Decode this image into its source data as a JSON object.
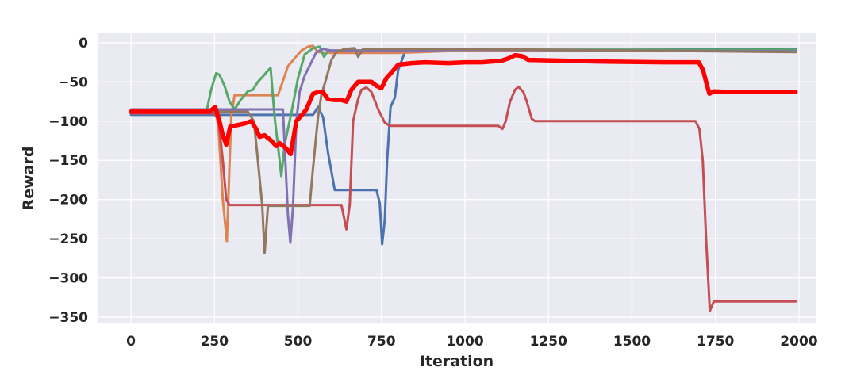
{
  "chart_data": {
    "type": "line",
    "title": "",
    "xlabel": "Iteration",
    "ylabel": "Reward",
    "xlim": [
      -100,
      2050
    ],
    "ylim": [
      -358,
      12
    ],
    "x_ticks": [
      0,
      250,
      500,
      750,
      1000,
      1250,
      1500,
      1750,
      2000
    ],
    "x_tick_labels": [
      "0",
      "250",
      "500",
      "750",
      "1000",
      "1250",
      "1500",
      "1750",
      "2000"
    ],
    "y_ticks": [
      0,
      -50,
      -100,
      -150,
      -200,
      -250,
      -300,
      -350
    ],
    "y_tick_labels": [
      "0",
      "−50",
      "−100",
      "−150",
      "−200",
      "−250",
      "−300",
      "−350"
    ],
    "grid": true,
    "background": "#eaeaf2",
    "grid_color": "#ffffff",
    "legend": "none",
    "series": [
      {
        "color": "#4c72b0",
        "points": [
          [
            0,
            -92
          ],
          [
            520,
            -92
          ],
          [
            545,
            -92
          ],
          [
            560,
            -82
          ],
          [
            575,
            -95
          ],
          [
            590,
            -140
          ],
          [
            610,
            -188
          ],
          [
            700,
            -188
          ],
          [
            735,
            -188
          ],
          [
            745,
            -205
          ],
          [
            752,
            -257
          ],
          [
            760,
            -225
          ],
          [
            767,
            -150
          ],
          [
            777,
            -82
          ],
          [
            790,
            -70
          ],
          [
            800,
            -35
          ],
          [
            820,
            -12
          ],
          [
            850,
            -10
          ],
          [
            1000,
            -9
          ],
          [
            1500,
            -9
          ],
          [
            1990,
            -8
          ]
        ]
      },
      {
        "color": "#dd8452",
        "points": [
          [
            0,
            -90
          ],
          [
            230,
            -90
          ],
          [
            255,
            -88
          ],
          [
            262,
            -110
          ],
          [
            275,
            -200
          ],
          [
            287,
            -253
          ],
          [
            300,
            -95
          ],
          [
            310,
            -67
          ],
          [
            350,
            -67
          ],
          [
            440,
            -67
          ],
          [
            450,
            -55
          ],
          [
            470,
            -30
          ],
          [
            490,
            -20
          ],
          [
            510,
            -10
          ],
          [
            530,
            -5
          ],
          [
            545,
            -4
          ],
          [
            560,
            -12
          ],
          [
            600,
            -13
          ],
          [
            800,
            -13
          ],
          [
            1000,
            -10
          ],
          [
            1990,
            -10
          ]
        ]
      },
      {
        "color": "#55a868",
        "points": [
          [
            0,
            -90
          ],
          [
            225,
            -90
          ],
          [
            240,
            -60
          ],
          [
            255,
            -39
          ],
          [
            265,
            -41
          ],
          [
            280,
            -55
          ],
          [
            295,
            -75
          ],
          [
            310,
            -85
          ],
          [
            330,
            -72
          ],
          [
            350,
            -62
          ],
          [
            365,
            -60
          ],
          [
            380,
            -50
          ],
          [
            395,
            -43
          ],
          [
            405,
            -38
          ],
          [
            418,
            -32
          ],
          [
            430,
            -95
          ],
          [
            445,
            -150
          ],
          [
            450,
            -170
          ],
          [
            460,
            -130
          ],
          [
            480,
            -90
          ],
          [
            500,
            -45
          ],
          [
            520,
            -15
          ],
          [
            545,
            -7
          ],
          [
            565,
            -5
          ],
          [
            578,
            -18
          ],
          [
            590,
            -10
          ],
          [
            620,
            -10
          ],
          [
            1000,
            -9
          ],
          [
            1990,
            -9
          ]
        ]
      },
      {
        "color": "#c44e52",
        "points": [
          [
            0,
            -90
          ],
          [
            250,
            -90
          ],
          [
            262,
            -100
          ],
          [
            275,
            -150
          ],
          [
            285,
            -200
          ],
          [
            295,
            -207
          ],
          [
            320,
            -207
          ],
          [
            400,
            -207
          ],
          [
            600,
            -207
          ],
          [
            630,
            -207
          ],
          [
            645,
            -238
          ],
          [
            655,
            -206
          ],
          [
            665,
            -100
          ],
          [
            680,
            -72
          ],
          [
            690,
            -60
          ],
          [
            705,
            -57
          ],
          [
            720,
            -63
          ],
          [
            740,
            -85
          ],
          [
            760,
            -102
          ],
          [
            775,
            -106
          ],
          [
            800,
            -106
          ],
          [
            900,
            -106
          ],
          [
            1000,
            -106
          ],
          [
            1100,
            -106
          ],
          [
            1112,
            -110
          ],
          [
            1122,
            -100
          ],
          [
            1135,
            -75
          ],
          [
            1150,
            -60
          ],
          [
            1160,
            -56
          ],
          [
            1175,
            -63
          ],
          [
            1185,
            -75
          ],
          [
            1200,
            -97
          ],
          [
            1210,
            -100
          ],
          [
            1300,
            -100
          ],
          [
            1500,
            -100
          ],
          [
            1690,
            -100
          ],
          [
            1702,
            -110
          ],
          [
            1712,
            -150
          ],
          [
            1722,
            -250
          ],
          [
            1733,
            -342
          ],
          [
            1745,
            -330
          ],
          [
            1990,
            -330
          ]
        ]
      },
      {
        "color": "#8172b3",
        "points": [
          [
            0,
            -85
          ],
          [
            350,
            -85
          ],
          [
            455,
            -85
          ],
          [
            460,
            -130
          ],
          [
            470,
            -220
          ],
          [
            477,
            -255
          ],
          [
            485,
            -210
          ],
          [
            495,
            -100
          ],
          [
            505,
            -62
          ],
          [
            520,
            -42
          ],
          [
            540,
            -25
          ],
          [
            555,
            -12
          ],
          [
            575,
            -8
          ],
          [
            600,
            -10
          ],
          [
            800,
            -10
          ],
          [
            1000,
            -9
          ],
          [
            1990,
            -11
          ]
        ]
      },
      {
        "color": "#937860",
        "points": [
          [
            0,
            -88
          ],
          [
            350,
            -88
          ],
          [
            368,
            -100
          ],
          [
            380,
            -150
          ],
          [
            393,
            -208
          ],
          [
            400,
            -268
          ],
          [
            410,
            -208
          ],
          [
            500,
            -208
          ],
          [
            535,
            -208
          ],
          [
            545,
            -160
          ],
          [
            560,
            -95
          ],
          [
            570,
            -67
          ],
          [
            585,
            -45
          ],
          [
            600,
            -22
          ],
          [
            615,
            -12
          ],
          [
            640,
            -8
          ],
          [
            670,
            -7
          ],
          [
            680,
            -18
          ],
          [
            695,
            -8
          ],
          [
            800,
            -8
          ],
          [
            1000,
            -8
          ],
          [
            1990,
            -12
          ]
        ]
      },
      {
        "color": "#ff0000",
        "width": 5.5,
        "points": [
          [
            0,
            -88
          ],
          [
            150,
            -88
          ],
          [
            235,
            -88
          ],
          [
            252,
            -82
          ],
          [
            265,
            -100
          ],
          [
            275,
            -118
          ],
          [
            285,
            -130
          ],
          [
            297,
            -107
          ],
          [
            320,
            -105
          ],
          [
            340,
            -103
          ],
          [
            360,
            -100
          ],
          [
            375,
            -110
          ],
          [
            385,
            -120
          ],
          [
            400,
            -118
          ],
          [
            420,
            -125
          ],
          [
            435,
            -132
          ],
          [
            445,
            -128
          ],
          [
            465,
            -135
          ],
          [
            478,
            -142
          ],
          [
            495,
            -100
          ],
          [
            510,
            -93
          ],
          [
            525,
            -85
          ],
          [
            545,
            -65
          ],
          [
            560,
            -63
          ],
          [
            575,
            -63
          ],
          [
            590,
            -72
          ],
          [
            610,
            -73
          ],
          [
            630,
            -73
          ],
          [
            645,
            -75
          ],
          [
            660,
            -60
          ],
          [
            680,
            -50
          ],
          [
            700,
            -50
          ],
          [
            720,
            -50
          ],
          [
            735,
            -55
          ],
          [
            750,
            -58
          ],
          [
            765,
            -45
          ],
          [
            780,
            -38
          ],
          [
            800,
            -28
          ],
          [
            840,
            -26
          ],
          [
            880,
            -25
          ],
          [
            950,
            -26
          ],
          [
            1000,
            -25
          ],
          [
            1050,
            -25
          ],
          [
            1110,
            -23
          ],
          [
            1130,
            -20
          ],
          [
            1150,
            -16
          ],
          [
            1170,
            -17
          ],
          [
            1190,
            -22
          ],
          [
            1300,
            -23
          ],
          [
            1400,
            -24
          ],
          [
            1600,
            -25
          ],
          [
            1700,
            -25
          ],
          [
            1713,
            -35
          ],
          [
            1725,
            -55
          ],
          [
            1732,
            -65
          ],
          [
            1745,
            -62
          ],
          [
            1800,
            -63
          ],
          [
            1900,
            -63
          ],
          [
            1990,
            -63
          ]
        ]
      }
    ]
  }
}
